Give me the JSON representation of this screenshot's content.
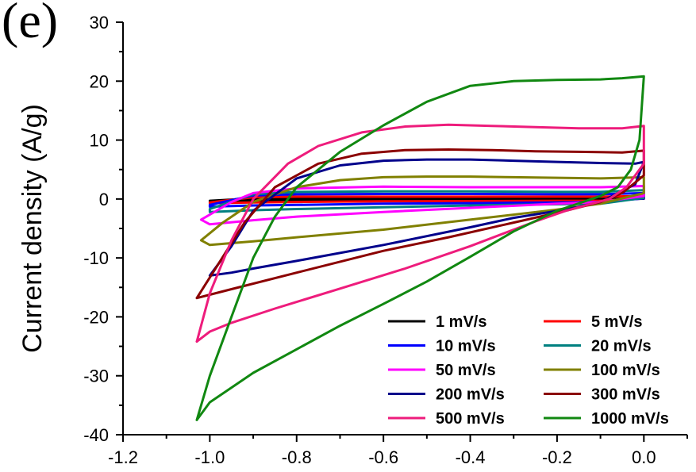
{
  "panel_label": "(e)",
  "chart_data": {
    "type": "line",
    "title": "",
    "xlabel": "",
    "ylabel": "Current density (A/g)",
    "xlim": [
      -1.2,
      0.1
    ],
    "ylim": [
      -40,
      30
    ],
    "x_ticks": [
      "-1.2",
      "-1.0",
      "-0.8",
      "-0.6",
      "-0.4",
      "-0.2",
      "0.0"
    ],
    "y_ticks": [
      "-40",
      "-30",
      "-20",
      "-10",
      "0",
      "10",
      "20",
      "30"
    ],
    "grid": false,
    "legend_position": "bottom-right",
    "series": [
      {
        "name": "1 mV/s",
        "color": "#000000",
        "x": [
          -1.0,
          -0.9,
          -0.8,
          -0.6,
          -0.4,
          -0.2,
          -0.1,
          0.0,
          0.0,
          -0.1,
          -0.2,
          -0.4,
          -0.6,
          -0.8,
          -0.9,
          -1.0,
          -1.0
        ],
        "y": [
          -0.3,
          0.1,
          0.15,
          0.15,
          0.15,
          0.15,
          0.15,
          0.2,
          0.05,
          -0.1,
          -0.1,
          -0.1,
          -0.15,
          -0.2,
          -0.25,
          -0.35,
          -0.3
        ]
      },
      {
        "name": "5 mV/s",
        "color": "#ff0000",
        "x": [
          -1.0,
          -0.9,
          -0.8,
          -0.6,
          -0.4,
          -0.2,
          -0.1,
          0.0,
          0.0,
          -0.1,
          -0.2,
          -0.4,
          -0.6,
          -0.8,
          -0.9,
          -1.0,
          -1.0
        ],
        "y": [
          -0.6,
          0.3,
          0.4,
          0.4,
          0.4,
          0.4,
          0.4,
          0.5,
          0.1,
          -0.3,
          -0.3,
          -0.35,
          -0.4,
          -0.5,
          -0.6,
          -0.7,
          -0.6
        ]
      },
      {
        "name": "10 mV/s",
        "color": "#0000ff",
        "x": [
          -1.0,
          -0.9,
          -0.8,
          -0.6,
          -0.4,
          -0.2,
          -0.1,
          0.0,
          0.0,
          -0.1,
          -0.2,
          -0.4,
          -0.6,
          -0.8,
          -0.9,
          -1.0,
          -1.0
        ],
        "y": [
          -1.0,
          0.6,
          0.8,
          0.85,
          0.85,
          0.8,
          0.8,
          1.0,
          0.1,
          -0.5,
          -0.6,
          -0.7,
          -0.8,
          -1.0,
          -1.1,
          -1.3,
          -1.0
        ]
      },
      {
        "name": "20 mV/s",
        "color": "#008080",
        "x": [
          -1.0,
          -0.9,
          -0.8,
          -0.6,
          -0.4,
          -0.2,
          -0.1,
          0.0,
          0.0,
          -0.1,
          -0.2,
          -0.4,
          -0.6,
          -0.8,
          -0.9,
          -1.0,
          -1.0
        ],
        "y": [
          -1.7,
          0.8,
          1.2,
          1.3,
          1.3,
          1.2,
          1.2,
          1.5,
          0.2,
          -0.8,
          -0.9,
          -1.1,
          -1.4,
          -1.7,
          -1.9,
          -2.2,
          -1.7
        ]
      },
      {
        "name": "50 mV/s",
        "color": "#ff00ff",
        "x": [
          -1.02,
          -0.95,
          -0.9,
          -0.8,
          -0.6,
          -0.4,
          -0.2,
          -0.1,
          0.0,
          0.0,
          -0.1,
          -0.2,
          -0.4,
          -0.6,
          -0.8,
          -0.9,
          -1.0,
          -1.02
        ],
        "y": [
          -3.5,
          -0.5,
          1.0,
          1.8,
          2.1,
          2.0,
          2.0,
          2.0,
          2.2,
          0.5,
          -0.5,
          -0.8,
          -1.5,
          -2.2,
          -3.0,
          -3.6,
          -4.3,
          -3.5
        ]
      },
      {
        "name": "100 mV/s",
        "color": "#808000",
        "x": [
          -1.02,
          -0.97,
          -0.9,
          -0.8,
          -0.7,
          -0.6,
          -0.5,
          -0.4,
          -0.3,
          -0.2,
          -0.1,
          0.0,
          0.0,
          -0.1,
          -0.2,
          -0.4,
          -0.6,
          -0.8,
          -0.9,
          -1.0,
          -1.02
        ],
        "y": [
          -7.0,
          -4.0,
          -0.5,
          2.0,
          3.2,
          3.7,
          3.8,
          3.8,
          3.7,
          3.6,
          3.5,
          3.7,
          1.0,
          -0.8,
          -1.8,
          -3.5,
          -5.2,
          -6.5,
          -7.2,
          -7.8,
          -7.0
        ]
      },
      {
        "name": "200 mV/s",
        "color": "#00008b",
        "x": [
          -1.0,
          -0.95,
          -0.9,
          -0.8,
          -0.7,
          -0.6,
          -0.5,
          -0.4,
          -0.3,
          -0.2,
          -0.1,
          -0.02,
          0.0,
          -0.02,
          -0.1,
          -0.18,
          -0.3,
          -0.4,
          -0.6,
          -0.8,
          -0.9,
          -0.95,
          -1.0
        ],
        "y": [
          -13.0,
          -8.0,
          -2.0,
          3.5,
          5.7,
          6.5,
          6.7,
          6.7,
          6.5,
          6.3,
          6.1,
          6.0,
          6.3,
          2.5,
          -0.5,
          -1.8,
          -3.2,
          -4.8,
          -7.8,
          -10.5,
          -11.8,
          -12.5,
          -13.0
        ]
      },
      {
        "name": "300 mV/s",
        "color": "#8b0000",
        "x": [
          -1.03,
          -0.98,
          -0.92,
          -0.85,
          -0.75,
          -0.65,
          -0.55,
          -0.45,
          -0.35,
          -0.25,
          -0.15,
          -0.05,
          0.0,
          0.0,
          -0.05,
          -0.1,
          -0.18,
          -0.3,
          -0.45,
          -0.6,
          -0.8,
          -0.95,
          -1.03
        ],
        "y": [
          -16.8,
          -11.0,
          -4.0,
          2.0,
          6.0,
          7.7,
          8.3,
          8.4,
          8.3,
          8.1,
          8.0,
          7.9,
          8.2,
          4.0,
          1.0,
          -0.5,
          -2.0,
          -4.0,
          -6.5,
          -8.8,
          -12.5,
          -15.3,
          -16.8
        ]
      },
      {
        "name": "500 mV/s",
        "color": "#ee1c7c",
        "x": [
          -1.03,
          -1.0,
          -0.95,
          -0.9,
          -0.82,
          -0.75,
          -0.65,
          -0.55,
          -0.45,
          -0.35,
          -0.25,
          -0.15,
          -0.05,
          0.0,
          0.0,
          -0.04,
          -0.08,
          -0.13,
          -0.18,
          -0.25,
          -0.4,
          -0.55,
          -0.7,
          -0.85,
          -0.95,
          -1.0,
          -1.03
        ],
        "y": [
          -24.2,
          -16.0,
          -7.0,
          0.0,
          6.0,
          9.0,
          11.3,
          12.3,
          12.6,
          12.4,
          12.2,
          12.0,
          12.0,
          12.4,
          6.0,
          2.0,
          0.0,
          -1.0,
          -2.0,
          -3.8,
          -8.0,
          -11.8,
          -15.2,
          -18.6,
          -21.0,
          -22.5,
          -24.2
        ]
      },
      {
        "name": "1000 mV/s",
        "color": "#118811",
        "x": [
          -1.03,
          -1.0,
          -0.95,
          -0.9,
          -0.85,
          -0.8,
          -0.7,
          -0.6,
          -0.5,
          -0.4,
          -0.3,
          -0.2,
          -0.1,
          -0.05,
          0.0,
          -0.01,
          -0.03,
          -0.06,
          -0.1,
          -0.14,
          -0.2,
          -0.3,
          -0.4,
          -0.5,
          -0.6,
          -0.7,
          -0.8,
          -0.9,
          -0.95,
          -1.0,
          -1.03
        ],
        "y": [
          -37.5,
          -30.0,
          -20.0,
          -10.0,
          -3.0,
          2.0,
          8.0,
          12.5,
          16.5,
          19.2,
          20.0,
          20.2,
          20.3,
          20.5,
          20.8,
          10.0,
          5.0,
          2.0,
          0.5,
          -0.5,
          -2.0,
          -5.5,
          -9.8,
          -14.0,
          -17.8,
          -21.5,
          -25.5,
          -29.5,
          -32.0,
          -34.5,
          -37.5
        ]
      }
    ]
  }
}
